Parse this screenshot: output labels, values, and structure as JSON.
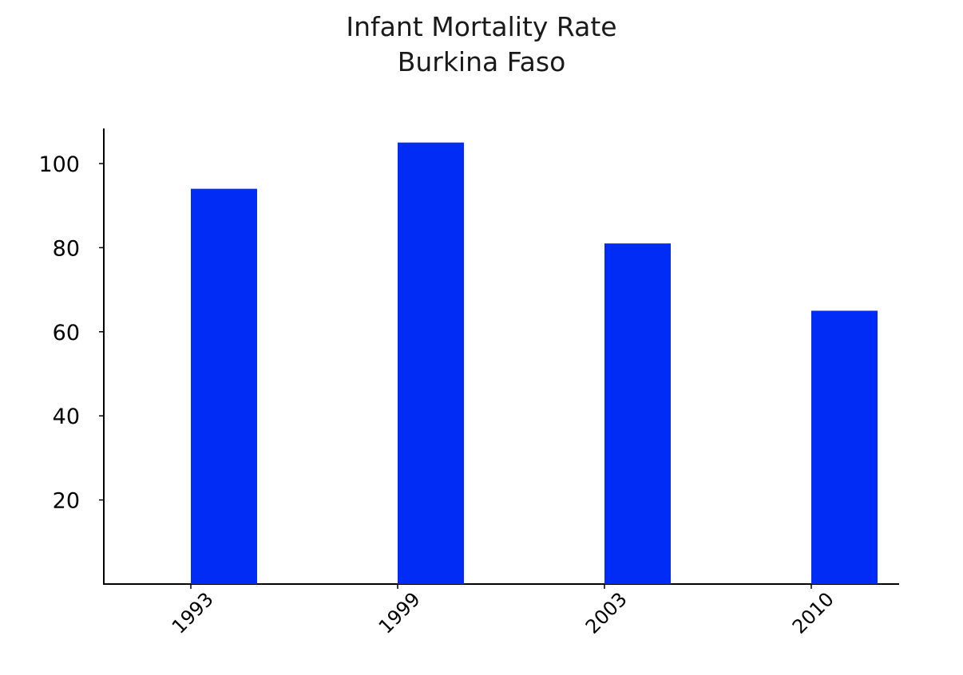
{
  "chart_data": {
    "type": "bar",
    "title": "Infant Mortality Rate",
    "subtitle": "Burkina Faso",
    "categories": [
      "1993",
      "1999",
      "2003",
      "2010"
    ],
    "values": [
      94,
      105,
      81,
      65
    ],
    "yticks": [
      20,
      40,
      60,
      80,
      100
    ],
    "ylim": [
      0,
      108
    ],
    "xlabel": "",
    "ylabel": "",
    "grid": false,
    "legend": "none",
    "bar_color": "#002cf5",
    "axis_color": "#000000"
  }
}
